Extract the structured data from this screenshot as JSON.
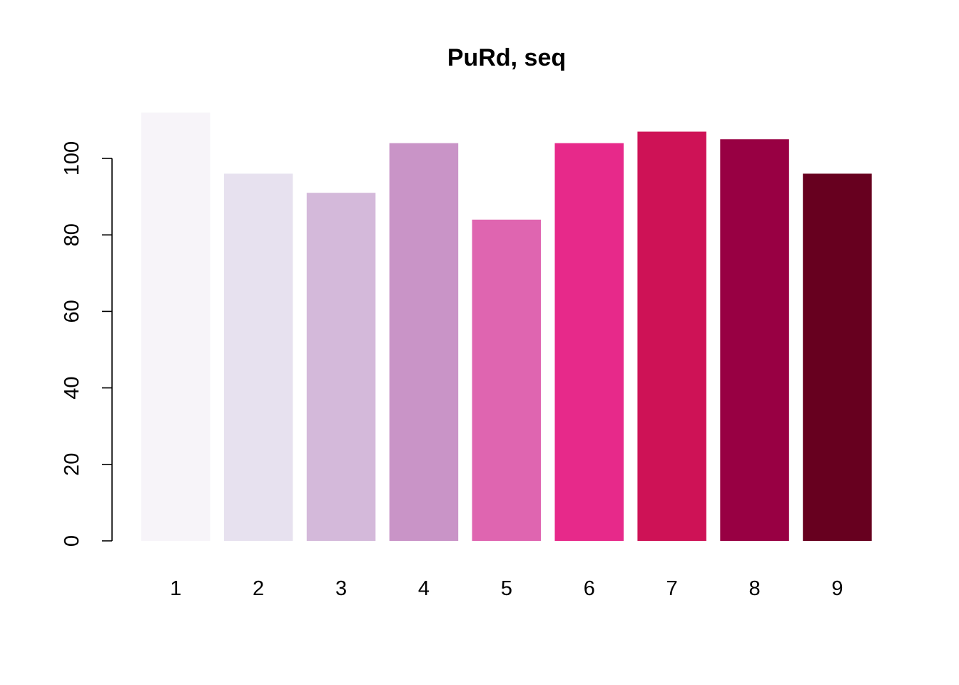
{
  "chart_data": {
    "type": "bar",
    "title": "PuRd, seq",
    "xlabel": "",
    "ylabel": "",
    "categories": [
      "1",
      "2",
      "3",
      "4",
      "5",
      "6",
      "7",
      "8",
      "9"
    ],
    "values": [
      112,
      96,
      91,
      104,
      84,
      104,
      107,
      105,
      96
    ],
    "colors": [
      "#F7F4F9",
      "#E7E1EF",
      "#D4B9DA",
      "#C994C7",
      "#DF65B0",
      "#E7298A",
      "#CE1256",
      "#980043",
      "#67001F"
    ],
    "ylim": [
      0,
      112
    ],
    "yticks": [
      0,
      20,
      40,
      60,
      80,
      100
    ],
    "grid": false,
    "legend": "none"
  }
}
